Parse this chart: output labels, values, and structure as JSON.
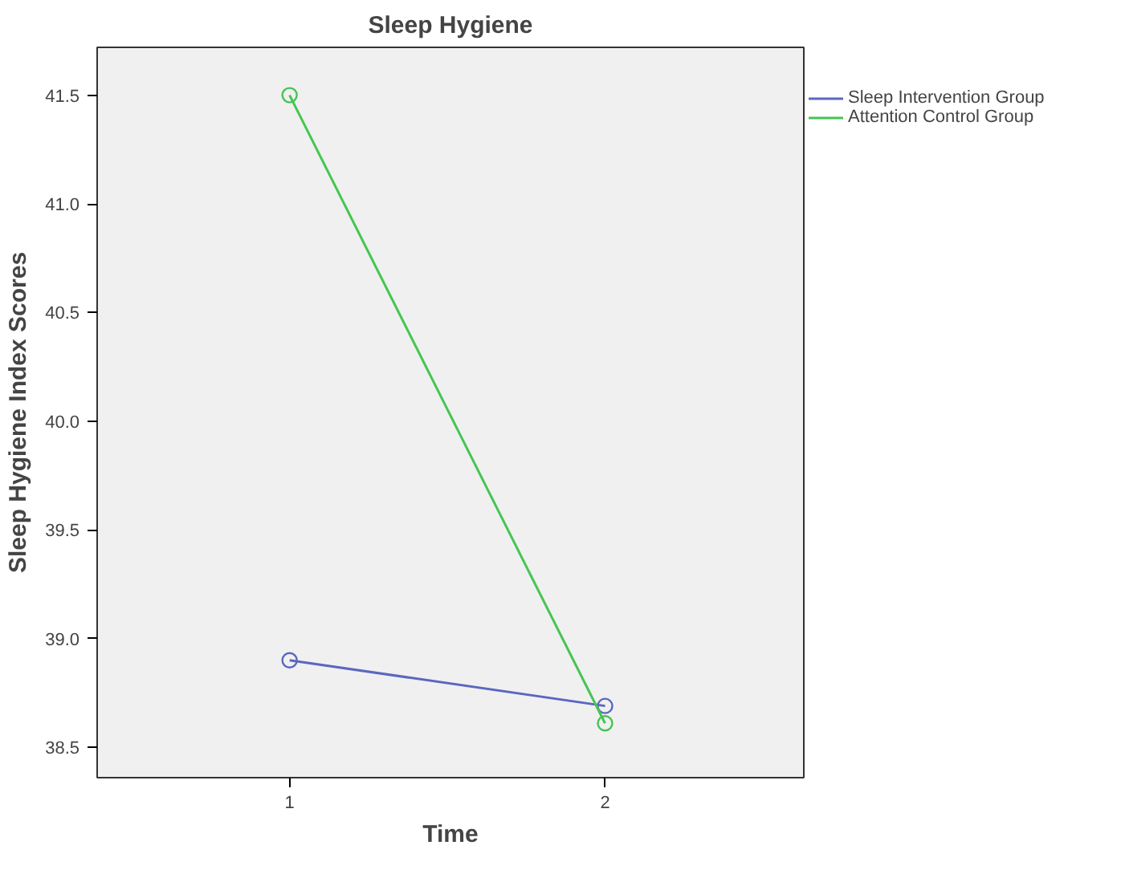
{
  "chart_data": {
    "type": "line",
    "title": "Sleep Hygiene",
    "xlabel": "Time",
    "ylabel": "Sleep Hygiene Index Scores",
    "categories": [
      "1",
      "2"
    ],
    "series": [
      {
        "name": "Sleep Intervention Group",
        "color": "#5a67c0",
        "values": [
          38.9,
          38.69
        ]
      },
      {
        "name": "Attention Control Group",
        "color": "#45c552",
        "values": [
          41.5,
          38.61
        ]
      }
    ],
    "ylim": [
      38.36,
      41.72
    ],
    "yticks": [
      {
        "value": 38.5,
        "label": "38.5"
      },
      {
        "value": 39.0,
        "label": "39.0"
      },
      {
        "value": 39.5,
        "label": "39.5"
      },
      {
        "value": 40.0,
        "label": "40.0"
      },
      {
        "value": 40.5,
        "label": "40.5"
      },
      {
        "value": 41.0,
        "label": "41.0"
      },
      {
        "value": 41.5,
        "label": "41.5"
      }
    ],
    "grid": false,
    "legend": "top right",
    "marker": "circle",
    "line_style": "solid"
  }
}
